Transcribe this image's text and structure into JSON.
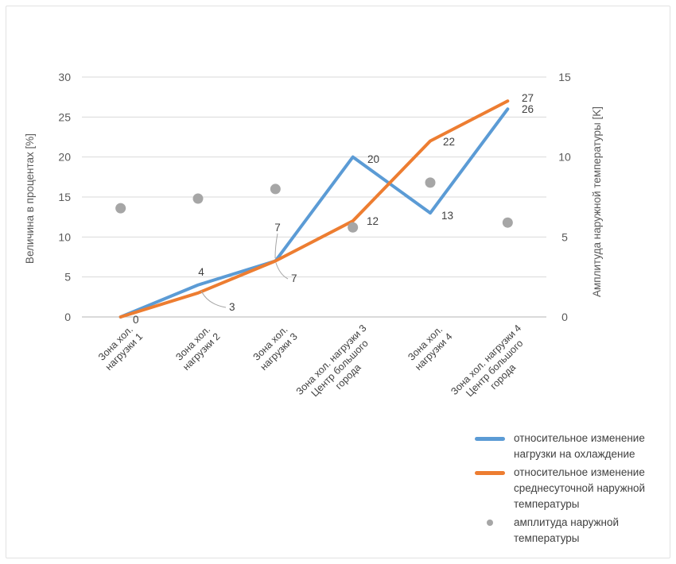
{
  "chart_data": {
    "type": "line",
    "title": "",
    "xlabel": "",
    "ylabel_left": "Величина в процентах [%]",
    "ylabel_right": "Амплитуда наружной температуры [K]",
    "ylim_left": [
      0,
      30
    ],
    "ylim_right": [
      0,
      15
    ],
    "left_ticks": [
      0,
      5,
      10,
      15,
      20,
      25,
      30
    ],
    "right_ticks": [
      0,
      5,
      10,
      15
    ],
    "grid": true,
    "legend_position": "bottom-right",
    "categories": [
      "Зона хол. нагрузки 1",
      "Зона хол. нагрузки 2",
      "Зона хол. нагрузки 3",
      "Зона хол. нагрузки 3 Центр большого города",
      "Зона хол. нагрузки 4",
      "Зона хол. нагрузки 4 Центр большого города"
    ],
    "category_lines": [
      [
        "Зона хол.",
        "нагрузки 1"
      ],
      [
        "Зона хол.",
        "нагрузки 2"
      ],
      [
        "Зона хол.",
        "нагрузки 3"
      ],
      [
        "Зона хол. нагрузки 3",
        "Центр большого",
        "города"
      ],
      [
        "Зона хол.",
        "нагрузки 4"
      ],
      [
        "Зона хол. нагрузки 4",
        "Центр большого",
        "города"
      ]
    ],
    "series": [
      {
        "name": "относительное изменение нагрузки на охлаждение",
        "type": "line",
        "axis": "left",
        "color": "#5B9BD5",
        "values": [
          0,
          4,
          7,
          20,
          13,
          26
        ],
        "labels": [
          "",
          "4",
          "7",
          "20",
          "13",
          "26"
        ]
      },
      {
        "name": "относительное изменение среднесуточной наружной температуры",
        "type": "line",
        "axis": "left",
        "color": "#ED7D31",
        "values": [
          0,
          3,
          7,
          12,
          22,
          27
        ],
        "labels": [
          "0",
          "3",
          "7",
          "12",
          "22",
          "27"
        ]
      },
      {
        "name": "амплитуда наружной температуры",
        "type": "scatter",
        "axis": "right",
        "color": "#A6A6A6",
        "values": [
          6.8,
          7.4,
          8.0,
          5.6,
          8.4,
          5.9
        ],
        "labels": null
      }
    ]
  },
  "legend": {
    "items": [
      {
        "swatch": "line",
        "color": "#5B9BD5",
        "label": "относительное изменение нагрузки на охлаждение"
      },
      {
        "swatch": "line",
        "color": "#ED7D31",
        "label": "относительное изменение среднесуточной наружной температуры"
      },
      {
        "swatch": "dot",
        "color": "#A6A6A6",
        "label": "амплитуда наружной температуры"
      }
    ]
  },
  "axes": {
    "left_title": "Величина в процентах [%]",
    "right_title": "Амплитуда наружной температуры [K]"
  }
}
